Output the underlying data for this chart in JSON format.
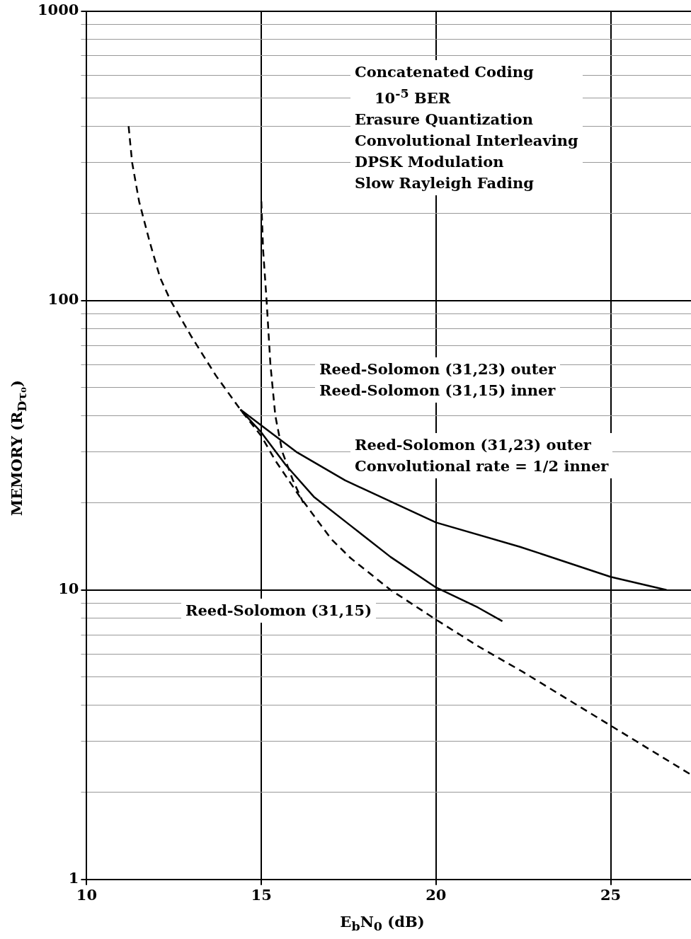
{
  "chart_data": {
    "type": "line",
    "xlabel": "E$_{b}$N$_{0}$ (dB)",
    "ylabel": "MEMORY (R$_{Dτ₀}$)",
    "xlim": [
      10,
      27.3
    ],
    "xticks": [
      10,
      15,
      20,
      25
    ],
    "ylim": [
      1,
      1000
    ],
    "yticks": [
      1,
      {
        "value": 2,
        "label": null
      },
      {
        "value": 3,
        "label": null
      },
      {
        "value": 4,
        "label": null
      },
      {
        "value": 5,
        "label": null
      },
      {
        "value": 6,
        "label": null
      },
      {
        "value": 7,
        "label": null
      },
      {
        "value": 8,
        "label": null
      },
      {
        "value": 9,
        "label": null
      },
      10,
      {
        "value": 20,
        "label": null
      },
      {
        "value": 30,
        "label": null
      },
      {
        "value": 40,
        "label": null
      },
      {
        "value": 50,
        "label": null
      },
      {
        "value": 60,
        "label": null
      },
      {
        "value": 70,
        "label": null
      },
      {
        "value": 80,
        "label": null
      },
      {
        "value": 90,
        "label": null
      },
      100,
      {
        "value": 200,
        "label": null
      },
      {
        "value": 300,
        "label": null
      },
      {
        "value": 400,
        "label": null
      },
      {
        "value": 500,
        "label": null
      },
      {
        "value": 600,
        "label": null
      },
      {
        "value": 700,
        "label": null
      },
      {
        "value": 800,
        "label": null
      },
      {
        "value": 900,
        "label": null
      },
      1000
    ],
    "log": "y",
    "grid": true,
    "legend": false,
    "marker": "none",
    "series": [
      {
        "color": "#000000",
        "line_style": "dashed",
        "x": [
          11.2,
          11.3,
          11.5,
          11.8,
          12.1,
          12.4,
          13.0,
          13.7,
          14.4,
          15.0,
          15.4,
          16.1,
          17.0,
          17.55,
          18.7,
          20.0,
          21.2,
          22.5,
          25,
          27.3
        ],
        "values": [
          400,
          300,
          220,
          160,
          120,
          100,
          75,
          55,
          42,
          34,
          28,
          21,
          15,
          12.9,
          10,
          7.9,
          6.4,
          5.2,
          3.4,
          2.3
        ]
      },
      {
        "color": "#000000",
        "line_style": "dashed",
        "x": [
          15.0,
          15.05,
          15.15,
          15.26,
          15.4,
          15.6,
          15.9,
          16.2
        ],
        "values": [
          220,
          150,
          100,
          60,
          40,
          30,
          24,
          20
        ]
      },
      {
        "color": "#000000",
        "line_style": "solid",
        "x": [
          14.4,
          15.0,
          15.7,
          16.5,
          17.55,
          18.7,
          20.0,
          21.2,
          21.9
        ],
        "values": [
          42,
          35,
          27,
          21,
          16.7,
          13,
          10.2,
          8.7,
          7.8
        ]
      },
      {
        "color": "#000000",
        "line_style": "solid",
        "x": [
          14.4,
          15.0,
          16.0,
          17.4,
          20.0,
          22.4,
          25.0,
          26.6
        ],
        "values": [
          42,
          37,
          30,
          23.9,
          17.1,
          14.1,
          11.1,
          10
        ]
      }
    ],
    "annotations": [
      "Concatenated Coding",
      "10$^{-5}$ BER",
      "Erasure Quantization",
      "Convolutional Interleaving",
      "DPSK Modulation",
      "Slow Rayleigh Fading",
      "Reed-Solomon (31,23) outer",
      "Reed-Solomon (31,15) inner",
      "Reed-Solomon (31,23) outer",
      "Convolutional rate = 1/2 inner",
      "Reed-Solomon (31,15)"
    ]
  }
}
